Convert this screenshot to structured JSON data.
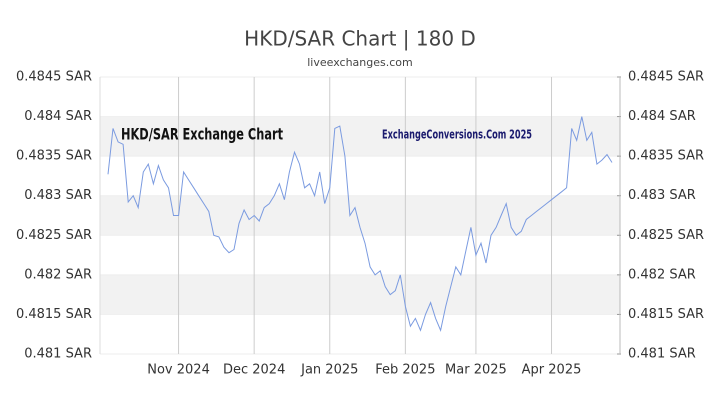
{
  "chart_data": {
    "type": "line",
    "title": "HKD/SAR Chart | 180 D",
    "subtitle": "liveexchanges.com",
    "annotations": [
      "HKD/SAR Exchange Chart",
      "ExchangeConversions.Com 2025"
    ],
    "color": "#7b9be0",
    "grid": true,
    "categories": [
      null,
      null,
      null,
      null,
      null,
      null,
      null,
      null,
      null,
      null,
      null,
      null,
      null,
      null,
      "Nov 2024",
      null,
      null,
      null,
      null,
      null,
      null,
      null,
      null,
      null,
      null,
      null,
      null,
      null,
      null,
      "Dec 2024",
      null,
      null,
      null,
      null,
      null,
      null,
      null,
      null,
      null,
      null,
      null,
      null,
      null,
      null,
      "Jan 2025",
      null,
      null,
      null,
      null,
      null,
      null,
      null,
      null,
      null,
      null,
      null,
      null,
      null,
      null,
      "Feb 2025",
      null,
      null,
      null,
      null,
      null,
      null,
      null,
      null,
      null,
      null,
      null,
      null,
      null,
      "Mar 2025",
      null,
      null,
      null,
      null,
      null,
      null,
      null,
      null,
      null,
      null,
      null,
      null,
      null,
      null,
      "Apr 2025",
      null,
      null,
      null,
      null,
      null,
      null,
      null,
      null,
      null,
      null,
      null,
      null
    ],
    "values": [
      0.48327,
      0.48385,
      0.48368,
      0.48365,
      0.48292,
      0.483,
      0.48285,
      0.4833,
      0.4834,
      0.48315,
      0.48338,
      0.4832,
      0.4831,
      0.48275,
      0.48275,
      0.4833,
      0.4832,
      0.4831,
      0.483,
      0.4829,
      0.4828,
      0.4825,
      0.48248,
      0.48235,
      0.48228,
      0.48232,
      0.48265,
      0.48282,
      0.4827,
      0.48275,
      0.48268,
      0.48285,
      0.4829,
      0.483,
      0.48315,
      0.48295,
      0.4833,
      0.48355,
      0.4834,
      0.4831,
      0.48315,
      0.483,
      0.4833,
      0.4829,
      0.4831,
      0.48385,
      0.48388,
      0.4835,
      0.48275,
      0.48285,
      0.4826,
      0.4824,
      0.4821,
      0.482,
      0.48205,
      0.48185,
      0.48175,
      0.4818,
      0.482,
      0.4816,
      0.48135,
      0.48145,
      0.4813,
      0.4815,
      0.48165,
      0.48145,
      0.4813,
      0.4816,
      0.48185,
      0.4821,
      0.482,
      0.4823,
      0.4826,
      0.48225,
      0.4824,
      0.48215,
      0.4825,
      0.4826,
      0.48275,
      0.4829,
      0.4826,
      0.4825,
      0.48255,
      0.4827,
      0.48275,
      0.4828,
      0.48285,
      0.4829,
      0.48295,
      0.483,
      0.48305,
      0.4831,
      0.48385,
      0.4837,
      0.484,
      0.4837,
      0.4838,
      0.4834,
      0.48345,
      0.48352,
      0.48342
    ],
    "ylim": [
      0.481,
      0.4845
    ],
    "yticks": [
      {
        "value": 0.4845,
        "label": "0.4845 SAR"
      },
      {
        "value": 0.484,
        "label": "0.484 SAR"
      },
      {
        "value": 0.4835,
        "label": "0.4835 SAR"
      },
      {
        "value": 0.483,
        "label": "0.483 SAR"
      },
      {
        "value": 0.4825,
        "label": "0.4825 SAR"
      },
      {
        "value": 0.482,
        "label": "0.482 SAR"
      },
      {
        "value": 0.4815,
        "label": "0.4815 SAR"
      },
      {
        "value": 0.481,
        "label": "0.481 SAR"
      }
    ],
    "y2lim": [
      0.481,
      0.4845
    ],
    "y2ticks": [
      {
        "value": 0.4845,
        "label": "0.4845 SAR"
      },
      {
        "value": 0.484,
        "label": "0.484 SAR"
      },
      {
        "value": 0.4835,
        "label": "0.4835 SAR"
      },
      {
        "value": 0.483,
        "label": "0.483 SAR"
      },
      {
        "value": 0.4825,
        "label": "0.4825 SAR"
      },
      {
        "value": 0.482,
        "label": "0.482 SAR"
      },
      {
        "value": 0.4815,
        "label": "0.4815 SAR"
      },
      {
        "value": 0.481,
        "label": "0.481 SAR"
      }
    ]
  }
}
